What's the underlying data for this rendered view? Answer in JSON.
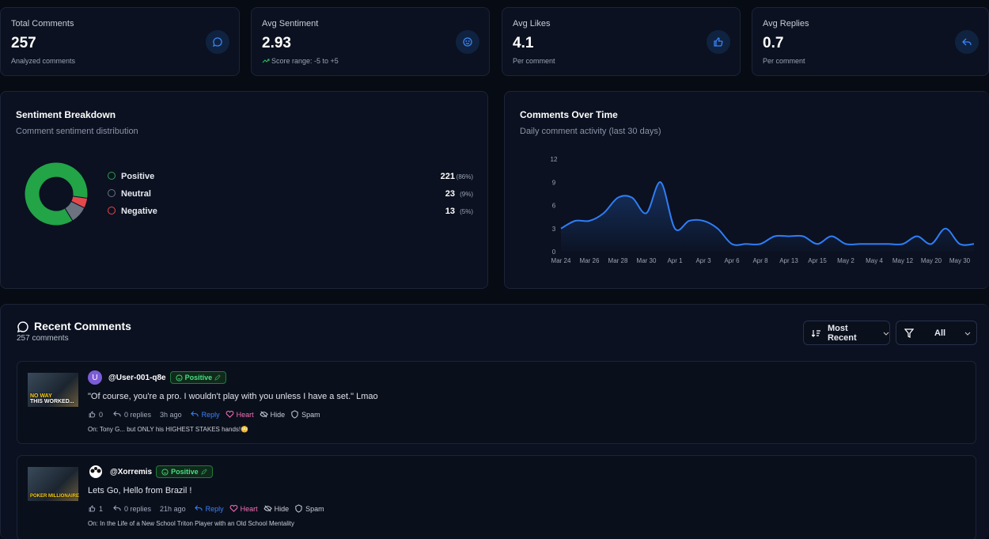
{
  "stats": [
    {
      "label": "Total Comments",
      "value": "257",
      "note": "Analyzed comments"
    },
    {
      "label": "Avg Sentiment",
      "value": "2.93",
      "note": "Score range: -5 to +5"
    },
    {
      "label": "Avg Likes",
      "value": "4.1",
      "note": "Per comment"
    },
    {
      "label": "Avg Replies",
      "value": "0.7",
      "note": "Per comment"
    }
  ],
  "chart_data": [
    {
      "type": "pie",
      "title": "Sentiment Breakdown",
      "subtitle": "Comment sentiment distribution",
      "donut": true,
      "categories": [
        "Positive",
        "Neutral",
        "Negative"
      ],
      "values": [
        221,
        23,
        13
      ],
      "percent_labels": [
        "(86%)",
        "(9%)",
        "(5%)"
      ],
      "colors": [
        "#22a447",
        "#6b7280",
        "#e5484d"
      ]
    },
    {
      "type": "line",
      "title": "Comments Over Time",
      "subtitle": "Daily comment activity (last 30 days)",
      "color": "#2f7df6",
      "categories": [
        "Mar 24",
        null,
        "Mar 26",
        null,
        "Mar 28",
        null,
        "Mar 30",
        null,
        "Apr 1",
        null,
        "Apr 3",
        null,
        "Apr 6",
        null,
        "Apr 8",
        null,
        "Apr 13",
        null,
        "Apr 15",
        null,
        "May 2",
        null,
        "May 4",
        null,
        "May 12",
        null,
        "May 20",
        null,
        "May 30",
        null
      ],
      "values": [
        3,
        4,
        4,
        5,
        7,
        7,
        5,
        9,
        3,
        4,
        4,
        3,
        1,
        1,
        1,
        2,
        2,
        2,
        1,
        2,
        1,
        1,
        1,
        1,
        1,
        2,
        1,
        3,
        1,
        1
      ],
      "ylim": [
        0,
        12
      ],
      "yticks": [
        0,
        3,
        6,
        9,
        12
      ]
    }
  ],
  "comments": {
    "title": "Recent Comments",
    "count": "257 comments",
    "sort": "Most Recent",
    "filter": "All",
    "actions": [
      "Reply",
      "Heart",
      "Hide",
      "Spam"
    ],
    "items": [
      {
        "thumb_text": [
          "NO WAY",
          "THIS WORKED..."
        ],
        "avatar": "U",
        "author": "@User-001-q8e",
        "sentiment": "Positive",
        "text": "\"Of course, you're a pro. I wouldn't play with you unless I have a set.\" Lmao",
        "likes": 0,
        "replies": "0 replies",
        "time": "3h ago",
        "video": "On: Tony G... but ONLY his HIGHEST STAKES hands!😳"
      },
      {
        "thumb_text": [
          "POKER MILLIONAIRE"
        ],
        "author": "@Xorremis",
        "sentiment": "Positive",
        "text": "Lets Go, Hello from Brazil !",
        "likes": 1,
        "replies": "0 replies",
        "time": "21h ago",
        "video": "On: In the Life of a New School Triton Player with an Old School Mentality"
      }
    ]
  }
}
